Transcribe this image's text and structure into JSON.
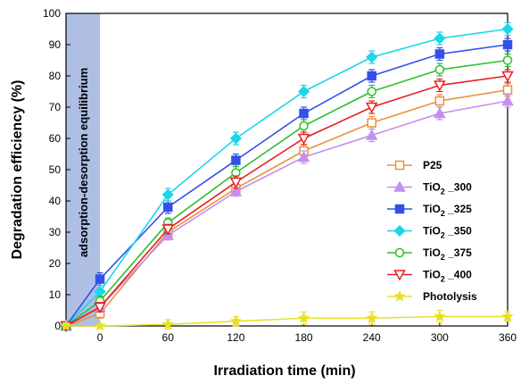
{
  "chart_data": {
    "type": "line",
    "xlabel": "Irradiation time (min)",
    "ylabel": "Degradation efficiency (%)",
    "xlim": [
      -30,
      360
    ],
    "ylim": [
      0,
      100
    ],
    "x_ticks": [
      0,
      60,
      120,
      180,
      240,
      300,
      360
    ],
    "y_ticks": [
      0,
      10,
      20,
      30,
      40,
      50,
      60,
      70,
      80,
      90,
      100
    ],
    "x": [
      -30,
      0,
      60,
      120,
      180,
      240,
      300,
      360
    ],
    "grid": false,
    "legend_position": "right",
    "shaded_region": {
      "x_range": [
        -30,
        0
      ],
      "label": "adsorption-desorption equilibrium",
      "color": "#aebfe3"
    },
    "series": [
      {
        "name": "P25",
        "color": "#e8923a",
        "marker": "square-open",
        "values": [
          0,
          4,
          30,
          44,
          56,
          65,
          72,
          75.5
        ],
        "errors": [
          1,
          1.5,
          1.5,
          1.5,
          2,
          2,
          2,
          2
        ]
      },
      {
        "name": "TiO2 _300",
        "color": "#c38ff0",
        "marker": "triangle-up-filled",
        "values": [
          0,
          6,
          29,
          43,
          54,
          61,
          68,
          72
        ],
        "errors": [
          1,
          1.5,
          1.5,
          1.5,
          2,
          2,
          2,
          2
        ]
      },
      {
        "name": "TiO2 _325",
        "color": "#3350e8",
        "marker": "square-filled",
        "values": [
          0,
          15,
          38,
          53,
          68,
          80,
          87,
          90
        ],
        "errors": [
          1,
          2,
          2,
          2,
          2,
          2,
          2,
          2
        ]
      },
      {
        "name": "TiO2 _350",
        "color": "#1bd6e8",
        "marker": "diamond-filled",
        "values": [
          0,
          11,
          42,
          60,
          75,
          86,
          92,
          95
        ],
        "errors": [
          1,
          2,
          2,
          2,
          2,
          2,
          2,
          2
        ]
      },
      {
        "name": "TiO2 _375",
        "color": "#2cc02c",
        "marker": "circle-open",
        "values": [
          0,
          8,
          33,
          49,
          64,
          75,
          82,
          85
        ],
        "errors": [
          1,
          1.5,
          1.5,
          2,
          2,
          2,
          2,
          2
        ]
      },
      {
        "name": "TiO2 _400",
        "color": "#e81e1e",
        "marker": "triangle-down-open",
        "values": [
          0,
          6,
          31,
          46,
          60,
          70,
          77,
          80
        ],
        "errors": [
          1,
          1.5,
          1.5,
          2,
          2,
          2,
          2,
          2
        ]
      },
      {
        "name": "Photolysis",
        "color": "#e6e02a",
        "marker": "star",
        "values": [
          0,
          0,
          0.5,
          1.5,
          2.5,
          2.5,
          3,
          3
        ],
        "errors": [
          0.5,
          0.5,
          1.5,
          1.5,
          2,
          2,
          2,
          1.5
        ]
      }
    ],
    "legend_labels": [
      {
        "main": "P25",
        "sub": ""
      },
      {
        "main": "TiO",
        "sub": "2",
        "rest": " _300"
      },
      {
        "main": "TiO",
        "sub": "2",
        "rest": " _325"
      },
      {
        "main": "TiO",
        "sub": "2",
        "rest": " _350"
      },
      {
        "main": "TiO",
        "sub": "2",
        "rest": " _375"
      },
      {
        "main": "TiO",
        "sub": "2",
        "rest": " _400"
      },
      {
        "main": "Photolysis",
        "sub": ""
      }
    ]
  }
}
